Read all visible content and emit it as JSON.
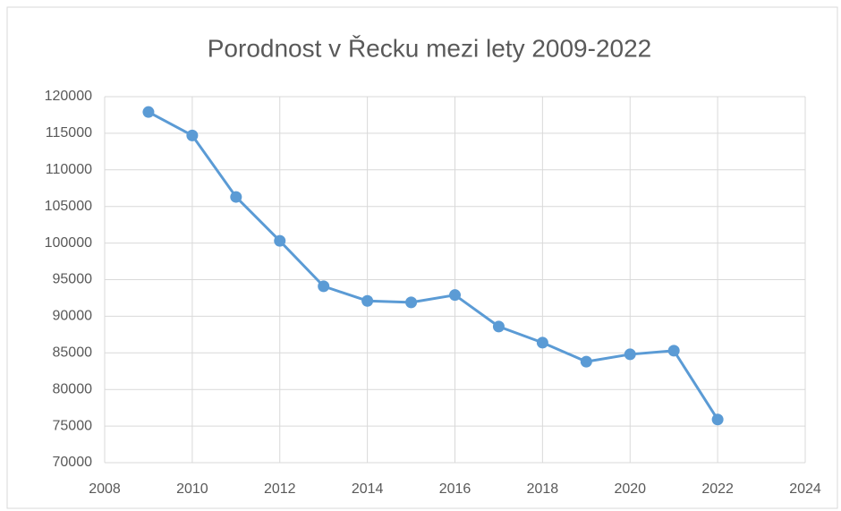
{
  "chart_data": {
    "type": "line",
    "title": "Porodnost v Řecku mezi lety 2009-2022",
    "x": [
      2009,
      2010,
      2011,
      2012,
      2013,
      2014,
      2015,
      2016,
      2017,
      2018,
      2019,
      2020,
      2021,
      2022
    ],
    "series": [
      {
        "color": "#5b9bd5",
        "values": [
          117900,
          114700,
          106300,
          100300,
          94100,
          92100,
          91900,
          92900,
          88600,
          86400,
          83800,
          84800,
          85300,
          75900
        ]
      }
    ],
    "xlim": [
      2008,
      2024
    ],
    "xticks": [
      2008,
      2010,
      2012,
      2014,
      2016,
      2018,
      2020,
      2022,
      2024
    ],
    "ylim": [
      70000,
      120000
    ],
    "yticks": [
      70000,
      75000,
      80000,
      85000,
      90000,
      95000,
      100000,
      105000,
      110000,
      115000,
      120000
    ],
    "grid": true,
    "markers": true
  }
}
